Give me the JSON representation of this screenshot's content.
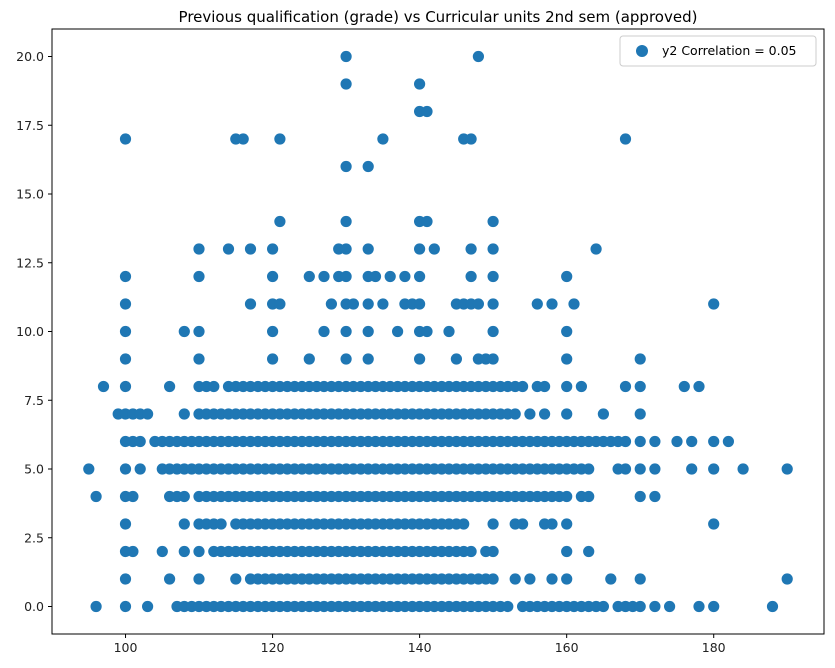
{
  "chart_data": {
    "type": "scatter",
    "title": "Previous qualification (grade) vs Curricular units 2nd sem (approved)",
    "xlabel": "",
    "ylabel": "",
    "xlim": [
      90,
      195
    ],
    "ylim": [
      -1,
      21
    ],
    "x_ticks": [
      100,
      120,
      140,
      160,
      180
    ],
    "y_ticks": [
      0.0,
      2.5,
      5.0,
      7.5,
      10.0,
      12.5,
      15.0,
      17.5,
      20.0
    ],
    "x_tick_labels": [
      "100",
      "120",
      "140",
      "160",
      "180"
    ],
    "y_tick_labels": [
      "0.0",
      "2.5",
      "5.0",
      "7.5",
      "10.0",
      "12.5",
      "15.0",
      "17.5",
      "20.0"
    ],
    "grid": false,
    "legend": {
      "position": "top-right",
      "label": "y2 Correlation = 0.05"
    },
    "marker_color": "#1f77b4",
    "series": [
      {
        "name": "y2 Correlation = 0.05",
        "rows": [
          {
            "y": 0,
            "x": [
              96,
              100,
              103,
              107,
              108,
              109,
              110,
              111,
              112,
              113,
              114,
              115,
              116,
              117,
              118,
              119,
              120,
              121,
              122,
              123,
              124,
              125,
              126,
              127,
              128,
              129,
              130,
              131,
              132,
              133,
              134,
              135,
              136,
              137,
              138,
              139,
              140,
              141,
              142,
              143,
              144,
              145,
              146,
              147,
              148,
              149,
              150,
              151,
              152,
              154,
              155,
              156,
              157,
              158,
              159,
              160,
              161,
              162,
              163,
              164,
              165,
              167,
              168,
              169,
              170,
              172,
              174,
              178,
              180,
              188
            ]
          },
          {
            "y": 1,
            "x": [
              100,
              106,
              110,
              115,
              117,
              118,
              119,
              120,
              121,
              122,
              123,
              124,
              125,
              126,
              127,
              128,
              129,
              130,
              131,
              132,
              133,
              134,
              135,
              136,
              137,
              138,
              139,
              140,
              141,
              142,
              143,
              144,
              145,
              146,
              147,
              148,
              149,
              150,
              153,
              155,
              158,
              160,
              166,
              170,
              190
            ]
          },
          {
            "y": 2,
            "x": [
              100,
              101,
              105,
              108,
              110,
              112,
              113,
              114,
              115,
              116,
              117,
              118,
              119,
              120,
              121,
              122,
              123,
              124,
              125,
              126,
              127,
              128,
              129,
              130,
              131,
              132,
              133,
              134,
              135,
              136,
              137,
              138,
              139,
              140,
              141,
              142,
              143,
              144,
              145,
              146,
              147,
              149,
              150,
              160,
              163
            ]
          },
          {
            "y": 3,
            "x": [
              100,
              108,
              110,
              111,
              112,
              113,
              115,
              116,
              117,
              118,
              119,
              120,
              121,
              122,
              123,
              124,
              125,
              126,
              127,
              128,
              129,
              130,
              131,
              132,
              133,
              134,
              135,
              136,
              137,
              138,
              139,
              140,
              141,
              142,
              143,
              144,
              145,
              146,
              150,
              153,
              154,
              157,
              158,
              160,
              180
            ]
          },
          {
            "y": 4,
            "x": [
              96,
              100,
              101,
              106,
              107,
              108,
              110,
              111,
              112,
              113,
              114,
              115,
              116,
              117,
              118,
              119,
              120,
              121,
              122,
              123,
              124,
              125,
              126,
              127,
              128,
              129,
              130,
              131,
              132,
              133,
              134,
              135,
              136,
              137,
              138,
              139,
              140,
              141,
              142,
              143,
              144,
              145,
              146,
              147,
              148,
              149,
              150,
              151,
              152,
              153,
              154,
              155,
              156,
              157,
              158,
              159,
              160,
              162,
              163,
              170,
              172
            ]
          },
          {
            "y": 5,
            "x": [
              95,
              100,
              102,
              105,
              106,
              107,
              108,
              109,
              110,
              111,
              112,
              113,
              114,
              115,
              116,
              117,
              118,
              119,
              120,
              121,
              122,
              123,
              124,
              125,
              126,
              127,
              128,
              129,
              130,
              131,
              132,
              133,
              134,
              135,
              136,
              137,
              138,
              139,
              140,
              141,
              142,
              143,
              144,
              145,
              146,
              147,
              148,
              149,
              150,
              151,
              152,
              153,
              154,
              155,
              156,
              157,
              158,
              159,
              160,
              161,
              162,
              163,
              167,
              168,
              170,
              172,
              177,
              180,
              184,
              190
            ]
          },
          {
            "y": 6,
            "x": [
              100,
              101,
              102,
              104,
              105,
              106,
              107,
              108,
              109,
              110,
              111,
              112,
              113,
              114,
              115,
              116,
              117,
              118,
              119,
              120,
              121,
              122,
              123,
              124,
              125,
              126,
              127,
              128,
              129,
              130,
              131,
              132,
              133,
              134,
              135,
              136,
              137,
              138,
              139,
              140,
              141,
              142,
              143,
              144,
              145,
              146,
              147,
              148,
              149,
              150,
              151,
              152,
              153,
              154,
              155,
              156,
              157,
              158,
              159,
              160,
              161,
              162,
              163,
              164,
              165,
              166,
              167,
              168,
              170,
              172,
              175,
              177,
              180,
              182
            ]
          },
          {
            "y": 7,
            "x": [
              99,
              100,
              101,
              102,
              103,
              108,
              110,
              111,
              112,
              113,
              114,
              115,
              116,
              117,
              118,
              119,
              120,
              121,
              122,
              123,
              124,
              125,
              126,
              127,
              128,
              129,
              130,
              131,
              132,
              133,
              134,
              135,
              136,
              137,
              138,
              139,
              140,
              141,
              142,
              143,
              144,
              145,
              146,
              147,
              148,
              149,
              150,
              151,
              152,
              153,
              155,
              157,
              160,
              165,
              170
            ]
          },
          {
            "y": 8,
            "x": [
              97,
              100,
              106,
              110,
              111,
              112,
              114,
              115,
              116,
              117,
              118,
              119,
              120,
              121,
              122,
              123,
              124,
              125,
              126,
              127,
              128,
              129,
              130,
              131,
              132,
              133,
              134,
              135,
              136,
              137,
              138,
              139,
              140,
              141,
              142,
              143,
              144,
              145,
              146,
              147,
              148,
              149,
              150,
              151,
              152,
              153,
              154,
              156,
              157,
              160,
              162,
              168,
              170,
              176,
              178
            ]
          },
          {
            "y": 9,
            "x": [
              100,
              110,
              120,
              125,
              130,
              133,
              140,
              145,
              148,
              149,
              150,
              160,
              170
            ]
          },
          {
            "y": 10,
            "x": [
              100,
              108,
              110,
              120,
              127,
              130,
              133,
              137,
              140,
              141,
              144,
              150,
              160
            ]
          },
          {
            "y": 11,
            "x": [
              100,
              117,
              120,
              121,
              128,
              130,
              131,
              133,
              135,
              138,
              139,
              140,
              145,
              146,
              147,
              148,
              150,
              156,
              158,
              161,
              180
            ]
          },
          {
            "y": 12,
            "x": [
              100,
              110,
              120,
              125,
              127,
              129,
              130,
              133,
              134,
              136,
              138,
              140,
              147,
              150,
              160
            ]
          },
          {
            "y": 13,
            "x": [
              110,
              114,
              117,
              120,
              129,
              130,
              133,
              140,
              142,
              147,
              150,
              164
            ]
          },
          {
            "y": 14,
            "x": [
              121,
              130,
              140,
              141,
              150
            ]
          },
          {
            "y": 16,
            "x": [
              130,
              133
            ]
          },
          {
            "y": 17,
            "x": [
              100,
              115,
              116,
              121,
              135,
              146,
              147,
              168
            ]
          },
          {
            "y": 18,
            "x": [
              140,
              141
            ]
          },
          {
            "y": 19,
            "x": [
              130,
              140
            ]
          },
          {
            "y": 20,
            "x": [
              130,
              148
            ]
          }
        ]
      }
    ]
  }
}
